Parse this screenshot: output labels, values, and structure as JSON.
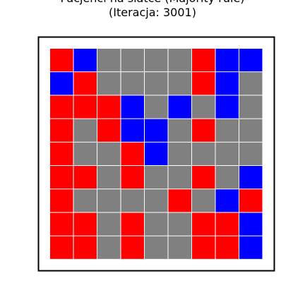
{
  "chart_data": {
    "type": "heatmap",
    "title_line1": "Pacjenci na siatce (Majority rule)",
    "title_line2": "(Iteracja: 3001)",
    "rows": 9,
    "cols": 9,
    "legend": {
      "R": "#ff0000",
      "B": "#0000ff",
      "G": "#808080"
    },
    "grid": [
      [
        "R",
        "B",
        "G",
        "G",
        "G",
        "G",
        "R",
        "B",
        "B"
      ],
      [
        "B",
        "R",
        "G",
        "G",
        "G",
        "G",
        "R",
        "B",
        "G"
      ],
      [
        "R",
        "R",
        "R",
        "B",
        "G",
        "B",
        "G",
        "B",
        "G"
      ],
      [
        "R",
        "G",
        "R",
        "B",
        "B",
        "G",
        "R",
        "G",
        "G"
      ],
      [
        "R",
        "G",
        "G",
        "R",
        "B",
        "G",
        "G",
        "G",
        "G"
      ],
      [
        "R",
        "R",
        "G",
        "R",
        "G",
        "G",
        "R",
        "G",
        "B"
      ],
      [
        "R",
        "G",
        "G",
        "G",
        "G",
        "R",
        "G",
        "B",
        "R"
      ],
      [
        "R",
        "R",
        "G",
        "R",
        "G",
        "G",
        "R",
        "R",
        "B"
      ],
      [
        "R",
        "R",
        "G",
        "R",
        "G",
        "G",
        "R",
        "R",
        "B"
      ]
    ]
  }
}
